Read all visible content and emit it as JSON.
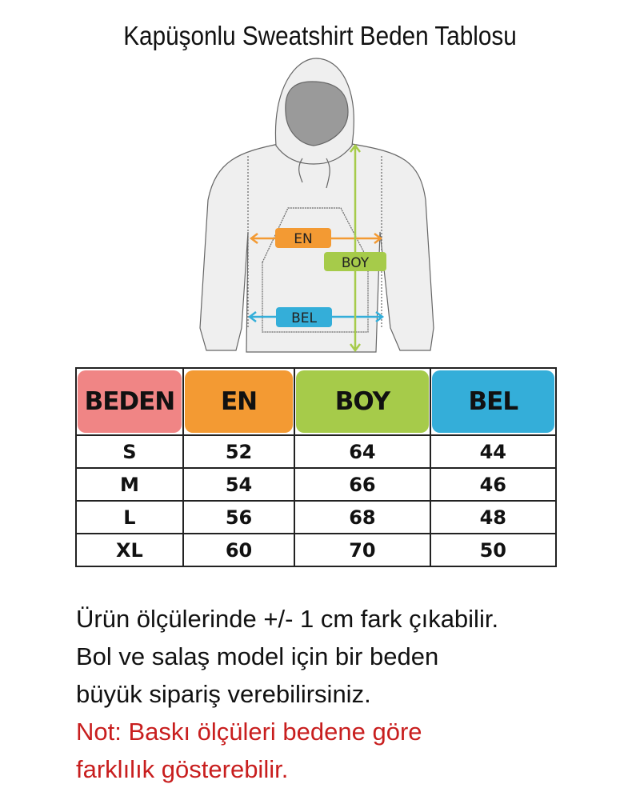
{
  "title": "Kapüşonlu Sweatshirt Beden Tablosu",
  "diagram": {
    "labels": {
      "en": "EN",
      "boy": "BOY",
      "bel": "BEL"
    },
    "colors": {
      "en": "#f39a33",
      "boy": "#a6cb4a",
      "bel": "#34aed9",
      "beden": "#f08585"
    }
  },
  "table": {
    "headers": [
      "BEDEN",
      "EN",
      "BOY",
      "BEL"
    ],
    "rows": [
      [
        "S",
        "52",
        "64",
        "44"
      ],
      [
        "M",
        "54",
        "66",
        "46"
      ],
      [
        "L",
        "56",
        "68",
        "48"
      ],
      [
        "XL",
        "60",
        "70",
        "50"
      ]
    ]
  },
  "notes": [
    "Ürün ölçülerinde +/- 1 cm fark çıkabilir.",
    "Bol ve salaş model için bir beden",
    "büyük sipariş verebilirsiniz."
  ],
  "warning": [
    "Not: Baskı ölçüleri bedene göre",
    "farklılık gösterebilir."
  ]
}
